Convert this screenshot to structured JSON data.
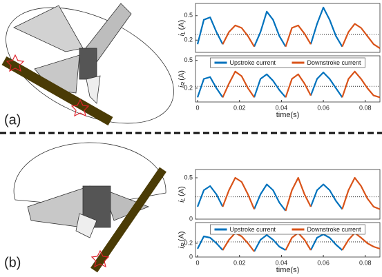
{
  "panel_labels": [
    "(a)",
    "(b)"
  ],
  "chart_data": [
    {
      "type": "line",
      "ylabel": [
        "i",
        "L",
        "(A)"
      ],
      "x": [
        0,
        0.003,
        0.006,
        0.009,
        0.012,
        0.015,
        0.018,
        0.021,
        0.024,
        0.027,
        0.03,
        0.033,
        0.036,
        0.039,
        0.042,
        0.045,
        0.048,
        0.051,
        0.054,
        0.057,
        0.06,
        0.063,
        0.066,
        0.069,
        0.072,
        0.075,
        0.078,
        0.081,
        0.084,
        0.087
      ],
      "xlim": [
        -0.001,
        0.087
      ],
      "ylim": [
        0.05,
        0.65
      ],
      "yticks": [
        0.2,
        0.5
      ],
      "reference_line": 0.27,
      "series": [
        {
          "color": "#0072bd",
          "values": [
            0.15,
            0.45,
            0.48,
            0.3,
            0.15,
            null,
            null,
            null,
            null,
            0.12,
            0.3,
            0.55,
            0.45,
            0.25,
            0.12,
            null,
            null,
            null,
            0.15,
            0.4,
            0.6,
            0.45,
            0.25,
            0.12,
            null,
            null,
            null,
            null,
            null,
            null
          ]
        },
        {
          "color": "#d95319",
          "values": [
            null,
            null,
            null,
            null,
            0.15,
            0.3,
            0.38,
            0.35,
            0.25,
            0.12,
            null,
            null,
            null,
            null,
            0.12,
            0.35,
            0.38,
            0.28,
            0.15,
            null,
            null,
            null,
            null,
            0.12,
            0.3,
            0.4,
            0.35,
            0.25,
            0.15,
            0.1
          ]
        }
      ]
    },
    {
      "type": "line",
      "ylabel": [
        "i",
        "R",
        "(A)"
      ],
      "xlabel": "time(s)",
      "x": [
        0,
        0.003,
        0.006,
        0.009,
        0.012,
        0.015,
        0.018,
        0.021,
        0.024,
        0.027,
        0.03,
        0.033,
        0.036,
        0.039,
        0.042,
        0.045,
        0.048,
        0.051,
        0.054,
        0.057,
        0.06,
        0.063,
        0.066,
        0.069,
        0.072,
        0.075,
        0.078,
        0.081,
        0.084,
        0.087
      ],
      "xlim": [
        -0.001,
        0.087
      ],
      "xticks": [
        0,
        0.02,
        0.04,
        0.06,
        0.08
      ],
      "ylim": [
        0.05,
        0.55
      ],
      "yticks": [
        0.2,
        0.5
      ],
      "reference_line": 0.22,
      "legend": "upper center",
      "series": [
        {
          "name": "Upstroke current",
          "color": "#0072bd",
          "values": [
            0.1,
            0.3,
            0.32,
            0.2,
            0.1,
            null,
            null,
            null,
            null,
            0.1,
            0.3,
            0.35,
            0.28,
            0.18,
            0.1,
            null,
            null,
            null,
            0.12,
            0.3,
            0.37,
            0.3,
            0.2,
            0.1,
            null,
            null,
            null,
            null,
            null,
            null
          ]
        },
        {
          "name": "Downstroke current",
          "color": "#d95319",
          "values": [
            null,
            null,
            null,
            null,
            0.1,
            0.25,
            0.38,
            0.33,
            0.2,
            0.1,
            null,
            null,
            null,
            null,
            0.1,
            0.3,
            0.35,
            0.25,
            0.12,
            null,
            null,
            null,
            null,
            0.1,
            0.3,
            0.38,
            0.3,
            0.2,
            0.12,
            0.1
          ]
        }
      ]
    },
    {
      "type": "line",
      "ylabel": [
        "i",
        "L",
        "(A)"
      ],
      "x": [
        0,
        0.003,
        0.006,
        0.009,
        0.012,
        0.015,
        0.018,
        0.021,
        0.024,
        0.027,
        0.03,
        0.033,
        0.036,
        0.039,
        0.042,
        0.045,
        0.048,
        0.051,
        0.054,
        0.057,
        0.06,
        0.063,
        0.066,
        0.069,
        0.072,
        0.075,
        0.078,
        0.081,
        0.084,
        0.087
      ],
      "xlim": [
        -0.001,
        0.087
      ],
      "ylim": [
        0,
        0.6
      ],
      "yticks": [
        0,
        0.5
      ],
      "reference_line": 0.27,
      "series": [
        {
          "color": "#0072bd",
          "values": [
            0.15,
            0.35,
            0.4,
            0.3,
            0.15,
            null,
            null,
            null,
            null,
            0.12,
            0.3,
            0.42,
            0.35,
            0.2,
            0.1,
            null,
            null,
            null,
            0.15,
            0.35,
            0.42,
            0.35,
            0.22,
            0.12,
            null,
            null,
            null,
            null,
            null,
            null
          ]
        },
        {
          "color": "#d95319",
          "values": [
            null,
            null,
            null,
            null,
            0.15,
            0.35,
            0.5,
            0.45,
            0.3,
            0.12,
            null,
            null,
            null,
            null,
            0.1,
            0.35,
            0.5,
            0.3,
            0.15,
            null,
            null,
            null,
            null,
            0.12,
            0.35,
            0.5,
            0.4,
            0.25,
            0.15,
            0.12
          ]
        }
      ]
    },
    {
      "type": "line",
      "ylabel": [
        "i",
        "R",
        "(A)"
      ],
      "xlabel": "time(s)",
      "x": [
        0,
        0.003,
        0.006,
        0.009,
        0.012,
        0.015,
        0.018,
        0.021,
        0.024,
        0.027,
        0.03,
        0.033,
        0.036,
        0.039,
        0.042,
        0.045,
        0.048,
        0.051,
        0.054,
        0.057,
        0.06,
        0.063,
        0.066,
        0.069,
        0.072,
        0.075,
        0.078,
        0.081,
        0.084,
        0.087
      ],
      "xlim": [
        -0.001,
        0.087
      ],
      "xticks": [
        0,
        0.02,
        0.04,
        0.06,
        0.08
      ],
      "ylim": [
        0,
        0.5
      ],
      "yticks": [
        0,
        0.2
      ],
      "reference_line": 0.22,
      "legend": "upper center",
      "series": [
        {
          "name": "Upstroke current",
          "color": "#0072bd",
          "values": [
            0.12,
            0.3,
            0.28,
            0.2,
            0.1,
            null,
            null,
            null,
            null,
            0.08,
            0.25,
            0.32,
            0.25,
            0.15,
            0.1,
            null,
            null,
            null,
            0.1,
            0.28,
            0.33,
            0.28,
            0.18,
            0.1,
            null,
            null,
            null,
            null,
            null,
            null
          ]
        },
        {
          "name": "Downstroke current",
          "color": "#d95319",
          "values": [
            null,
            null,
            null,
            null,
            0.1,
            0.25,
            0.35,
            0.3,
            0.2,
            0.08,
            null,
            null,
            null,
            null,
            0.1,
            0.28,
            0.35,
            0.25,
            0.1,
            null,
            null,
            null,
            null,
            0.1,
            0.25,
            0.35,
            0.28,
            0.2,
            0.15,
            0.12
          ]
        }
      ]
    }
  ]
}
